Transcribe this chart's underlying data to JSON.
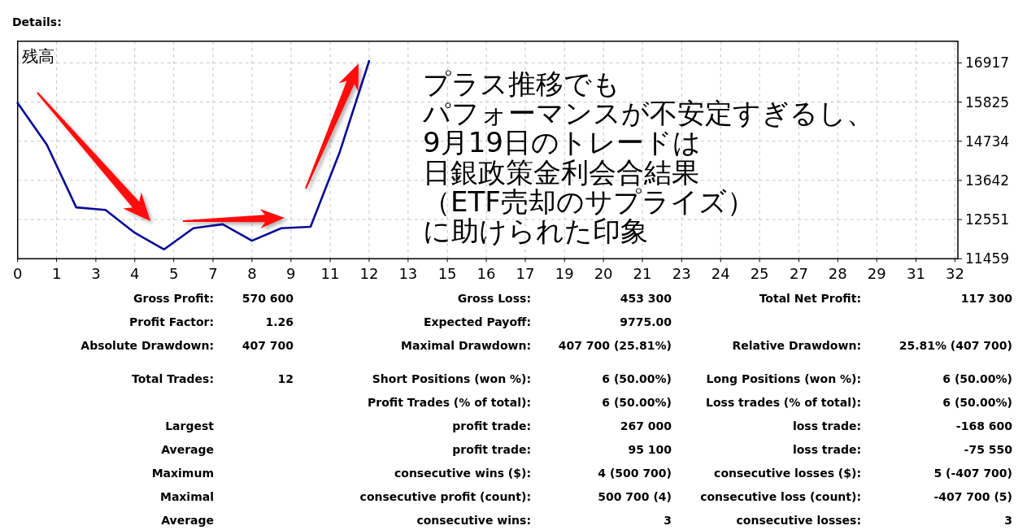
{
  "chart_data": [
    {
      "type": "line",
      "title": "Details:",
      "ylabel": "残高",
      "x": [
        0,
        1,
        2,
        3,
        4,
        5,
        6,
        7,
        8,
        9,
        10,
        11,
        12
      ],
      "series": [
        {
          "color": "#0a0a96",
          "values": [
            15800,
            14630,
            12890,
            12820,
            12180,
            11720,
            12310,
            12420,
            11960,
            12310,
            12350,
            14440,
            16970
          ]
        }
      ],
      "xlim": [
        0,
        32.1
      ],
      "xticks": [
        0,
        {
          "value": 1.33,
          "label": "1"
        },
        {
          "value": 2.67,
          "label": "3"
        },
        4,
        {
          "value": 5.33,
          "label": "5"
        },
        {
          "value": 6.67,
          "label": "7"
        },
        8,
        {
          "value": 9.33,
          "label": "9"
        },
        {
          "value": 10.67,
          "label": "11"
        },
        12,
        {
          "value": 13.33,
          "label": "13"
        },
        {
          "value": 14.67,
          "label": "15"
        },
        16,
        {
          "value": 17.33,
          "label": "17"
        },
        {
          "value": 18.67,
          "label": "19"
        },
        20,
        {
          "value": 21.33,
          "label": "21"
        },
        {
          "value": 22.67,
          "label": "23"
        },
        24,
        {
          "value": 25.33,
          "label": "25"
        },
        {
          "value": 26.67,
          "label": "27"
        },
        28,
        {
          "value": 29.33,
          "label": "29"
        },
        {
          "value": 30.67,
          "label": "31"
        },
        32
      ],
      "ylim": [
        11459,
        17520
      ],
      "yticks": [
        11459,
        12551,
        13642,
        14734,
        15825,
        16917
      ],
      "grid": true,
      "annotations": [
        "プラス推移でも",
        "パフォーマンスが不安定すぎるし、",
        "9月19日のトレードは",
        "日銀政策金利会合結果",
        "（ETF売却のサプライズ）",
        "に助けられた印象"
      ]
    },
    {
      "type": "other",
      "annotations": [
        "Gross Profit:",
        "570 600",
        "Gross Loss:",
        "453 300",
        "Total Net Profit:",
        "117 300",
        "Profit Factor:",
        "1.26",
        "Expected Payoff:",
        "9775.00",
        "Absolute Drawdown:",
        "407 700",
        "Maximal Drawdown:",
        "407 700 (25.81%)",
        "Relative Drawdown:",
        "25.81% (407 700)",
        "Total Trades:",
        "12",
        "Short Positions (won %):",
        "6 (50.00%)",
        "Long Positions (won %):",
        "6 (50.00%)",
        "Profit Trades (% of total):",
        "6 (50.00%)",
        "Loss trades (% of total):",
        "6 (50.00%)",
        "Largest",
        "profit trade:",
        "267 000",
        "loss trade:",
        "-168 600",
        "Average",
        "profit trade:",
        "95 100",
        "loss trade:",
        "-75 550",
        "Maximum",
        "consecutive wins ($):",
        "4 (500 700)",
        "consecutive losses ($):",
        "5 (-407 700)",
        "Maximal",
        "consecutive profit (count):",
        "500 700 (4)",
        "consecutive loss (count):",
        "-407 700 (5)",
        "Average",
        "consecutive wins:",
        "3",
        "consecutive losses:",
        "3"
      ]
    }
  ]
}
